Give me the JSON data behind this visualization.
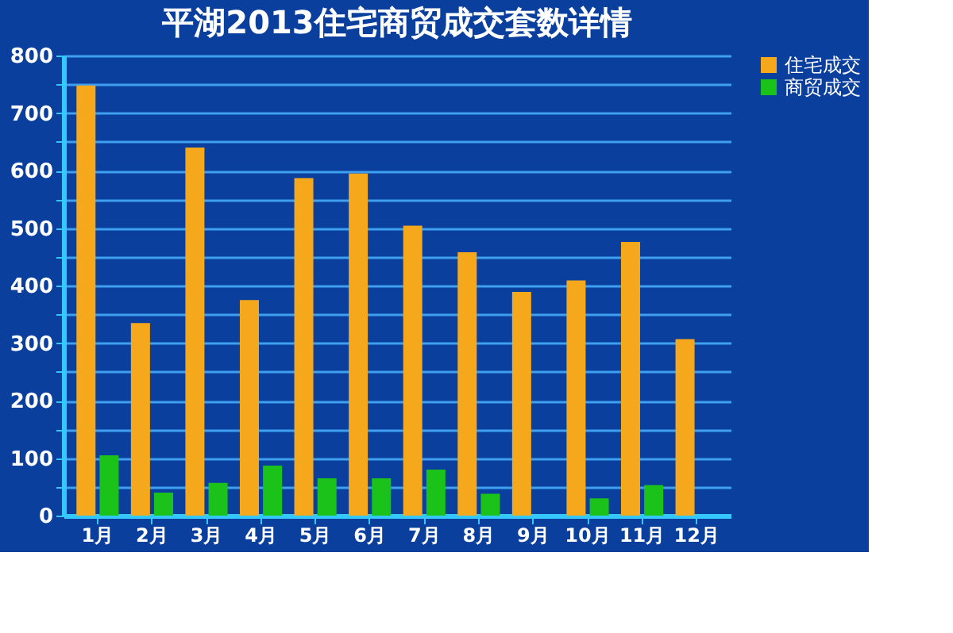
{
  "chart_data": {
    "type": "bar",
    "title": "平湖2013住宅商贸成交套数详情",
    "categories": [
      "1月",
      "2月",
      "3月",
      "4月",
      "5月",
      "6月",
      "7月",
      "8月",
      "9月",
      "10月",
      "11月",
      "12月"
    ],
    "series": [
      {
        "name": "住宅成交",
        "color": "#f5a81c",
        "values": [
          748,
          335,
          640,
          375,
          587,
          595,
          504,
          458,
          389,
          409,
          476,
          307
        ]
      },
      {
        "name": "商贸成交",
        "color": "#1ac21a",
        "values": [
          105,
          40,
          57,
          87,
          65,
          65,
          80,
          38,
          null,
          30,
          53,
          null
        ]
      }
    ],
    "ylim": [
      0,
      800
    ],
    "yticks": [
      0,
      {
        "value": 50,
        "label": null
      },
      100,
      {
        "value": 150,
        "label": null
      },
      200,
      {
        "value": 250,
        "label": null
      },
      300,
      {
        "value": 350,
        "label": null
      },
      400,
      {
        "value": 450,
        "label": null
      },
      500,
      {
        "value": 550,
        "label": null
      },
      600,
      {
        "value": 650,
        "label": null
      },
      700,
      {
        "value": 750,
        "label": null
      },
      800
    ],
    "grid": "y",
    "legend": "right"
  }
}
